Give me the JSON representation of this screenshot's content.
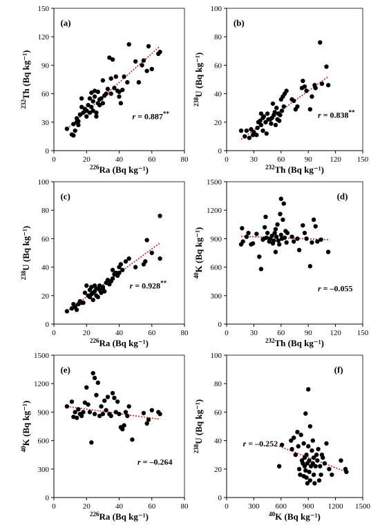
{
  "chart_data": [
    {
      "type": "scatter",
      "panel_label": "(a)",
      "x_var": "226Ra",
      "x_unit": "(Bq kg⁻¹)",
      "y_var": "232Th",
      "y_unit": "(Bq kg⁻¹)",
      "xlim": [
        0,
        80
      ],
      "xticks": [
        0,
        20,
        40,
        60,
        80
      ],
      "ylim": [
        0,
        150
      ],
      "yticks": [
        0,
        30,
        60,
        90,
        120,
        150
      ],
      "r_text": "r = 0.887**",
      "trendline": [
        [
          8,
          23
        ],
        [
          65,
          110
        ]
      ],
      "points": [
        [
          8,
          23
        ],
        [
          11,
          17
        ],
        [
          12,
          16
        ],
        [
          12,
          28
        ],
        [
          13,
          21
        ],
        [
          14,
          30
        ],
        [
          14,
          34
        ],
        [
          15,
          27
        ],
        [
          15,
          31
        ],
        [
          16,
          38
        ],
        [
          17,
          46
        ],
        [
          17,
          55
        ],
        [
          18,
          40
        ],
        [
          19,
          44
        ],
        [
          20,
          42
        ],
        [
          20,
          36
        ],
        [
          21,
          48
        ],
        [
          22,
          40
        ],
        [
          22,
          55
        ],
        [
          23,
          46
        ],
        [
          23,
          61
        ],
        [
          24,
          52
        ],
        [
          24,
          42
        ],
        [
          25,
          57
        ],
        [
          25,
          63
        ],
        [
          26,
          36
        ],
        [
          26,
          40
        ],
        [
          27,
          50
        ],
        [
          27,
          62
        ],
        [
          28,
          48
        ],
        [
          28,
          54
        ],
        [
          29,
          55
        ],
        [
          30,
          50
        ],
        [
          30,
          74
        ],
        [
          31,
          58
        ],
        [
          32,
          60
        ],
        [
          33,
          65
        ],
        [
          34,
          98
        ],
        [
          35,
          60
        ],
        [
          35,
          76
        ],
        [
          36,
          96
        ],
        [
          37,
          66
        ],
        [
          38,
          78
        ],
        [
          39,
          63
        ],
        [
          40,
          62
        ],
        [
          40,
          57
        ],
        [
          41,
          50
        ],
        [
          42,
          64
        ],
        [
          43,
          78
        ],
        [
          45,
          72
        ],
        [
          46,
          112
        ],
        [
          50,
          94
        ],
        [
          52,
          72
        ],
        [
          54,
          90
        ],
        [
          55,
          95
        ],
        [
          57,
          84
        ],
        [
          58,
          110
        ],
        [
          60,
          86
        ],
        [
          64,
          102
        ],
        [
          65,
          104
        ]
      ]
    },
    {
      "type": "scatter",
      "panel_label": "(b)",
      "x_var": "232Th",
      "x_unit": "(Bq kg⁻¹)",
      "y_var": "238U",
      "y_unit": "(Bq kg⁻¹)",
      "xlim": [
        0,
        150
      ],
      "xticks": [
        0,
        30,
        60,
        90,
        120,
        150
      ],
      "ylim": [
        0,
        100
      ],
      "yticks": [
        0,
        20,
        40,
        60,
        80,
        100
      ],
      "r_text": "r = 0.838**",
      "trendline": [
        [
          16,
          8
        ],
        [
          112,
          52
        ]
      ],
      "points": [
        [
          16,
          14
        ],
        [
          20,
          10
        ],
        [
          22,
          14
        ],
        [
          25,
          9
        ],
        [
          27,
          15
        ],
        [
          29,
          11
        ],
        [
          30,
          13
        ],
        [
          33,
          11
        ],
        [
          34,
          16
        ],
        [
          35,
          20
        ],
        [
          37,
          21
        ],
        [
          38,
          26
        ],
        [
          38,
          18
        ],
        [
          40,
          14
        ],
        [
          40,
          23
        ],
        [
          41,
          24
        ],
        [
          43,
          20
        ],
        [
          44,
          12
        ],
        [
          45,
          26
        ],
        [
          46,
          22
        ],
        [
          48,
          22
        ],
        [
          49,
          19
        ],
        [
          50,
          23
        ],
        [
          51,
          33
        ],
        [
          52,
          25
        ],
        [
          53,
          27
        ],
        [
          54,
          18
        ],
        [
          55,
          30
        ],
        [
          56,
          22
        ],
        [
          57,
          26
        ],
        [
          58,
          21
        ],
        [
          59,
          25
        ],
        [
          60,
          36
        ],
        [
          61,
          28
        ],
        [
          62,
          38
        ],
        [
          63,
          31
        ],
        [
          64,
          40
        ],
        [
          66,
          42
        ],
        [
          72,
          36
        ],
        [
          74,
          35
        ],
        [
          76,
          29
        ],
        [
          78,
          31
        ],
        [
          83,
          44
        ],
        [
          84,
          49
        ],
        [
          86,
          45
        ],
        [
          88,
          42
        ],
        [
          92,
          29
        ],
        [
          94,
          38
        ],
        [
          97,
          46
        ],
        [
          98,
          44
        ],
        [
          103,
          76
        ],
        [
          105,
          47
        ],
        [
          110,
          59
        ],
        [
          112,
          46
        ]
      ]
    },
    {
      "type": "scatter",
      "panel_label": "(c)",
      "x_var": "226Ra",
      "x_unit": "(Bq kg⁻¹)",
      "y_var": "238U",
      "y_unit": "(Bq kg⁻¹)",
      "xlim": [
        0,
        80
      ],
      "xticks": [
        0,
        20,
        40,
        60,
        80
      ],
      "ylim": [
        0,
        100
      ],
      "yticks": [
        0,
        20,
        40,
        60,
        80,
        100
      ],
      "r_text": "r = 0.928**",
      "trendline": [
        [
          8,
          9
        ],
        [
          65,
          57
        ]
      ],
      "points": [
        [
          8,
          9
        ],
        [
          11,
          11
        ],
        [
          12,
          14
        ],
        [
          13,
          12
        ],
        [
          14,
          10
        ],
        [
          15,
          14
        ],
        [
          16,
          16
        ],
        [
          17,
          15
        ],
        [
          18,
          15
        ],
        [
          19,
          22
        ],
        [
          20,
          27
        ],
        [
          21,
          20
        ],
        [
          22,
          24
        ],
        [
          22,
          19
        ],
        [
          23,
          26
        ],
        [
          23,
          21
        ],
        [
          24,
          22
        ],
        [
          24,
          17
        ],
        [
          25,
          23
        ],
        [
          25,
          27
        ],
        [
          26,
          25
        ],
        [
          26,
          20
        ],
        [
          27,
          19
        ],
        [
          28,
          24
        ],
        [
          28,
          27
        ],
        [
          29,
          22
        ],
        [
          30,
          25
        ],
        [
          30,
          26
        ],
        [
          31,
          23
        ],
        [
          32,
          29
        ],
        [
          33,
          31
        ],
        [
          34,
          28
        ],
        [
          35,
          30
        ],
        [
          36,
          32
        ],
        [
          36,
          38
        ],
        [
          37,
          35
        ],
        [
          38,
          36
        ],
        [
          39,
          34
        ],
        [
          40,
          36
        ],
        [
          40,
          40
        ],
        [
          41,
          42
        ],
        [
          42,
          38
        ],
        [
          44,
          44
        ],
        [
          46,
          46
        ],
        [
          50,
          40
        ],
        [
          55,
          42
        ],
        [
          56,
          44
        ],
        [
          57,
          59
        ],
        [
          60,
          50
        ],
        [
          65,
          46
        ],
        [
          65,
          76
        ]
      ]
    },
    {
      "type": "scatter",
      "panel_label": "(d)",
      "x_var": "232Th",
      "x_unit": "(Bq kg⁻¹)",
      "y_var": "40K",
      "y_unit": "(Bq kg⁻¹)",
      "xlim": [
        0,
        150
      ],
      "xticks": [
        0,
        30,
        60,
        90,
        120,
        150
      ],
      "ylim": [
        0,
        1500
      ],
      "yticks": [
        0,
        300,
        600,
        900,
        1200,
        1500
      ],
      "r_text": "r = –0.055",
      "trendline": [
        [
          16,
          925
        ],
        [
          112,
          890
        ]
      ],
      "points": [
        [
          16,
          840
        ],
        [
          17,
          1010
        ],
        [
          18,
          870
        ],
        [
          22,
          920
        ],
        [
          24,
          960
        ],
        [
          27,
          840
        ],
        [
          29,
          850
        ],
        [
          33,
          950
        ],
        [
          36,
          710
        ],
        [
          38,
          580
        ],
        [
          40,
          890
        ],
        [
          41,
          900
        ],
        [
          42,
          1020
        ],
        [
          43,
          1130
        ],
        [
          44,
          910
        ],
        [
          45,
          960
        ],
        [
          47,
          870
        ],
        [
          48,
          900
        ],
        [
          50,
          930
        ],
        [
          51,
          850
        ],
        [
          52,
          880
        ],
        [
          53,
          960
        ],
        [
          54,
          1000
        ],
        [
          54,
          760
        ],
        [
          55,
          920
        ],
        [
          56,
          1050
        ],
        [
          57,
          880
        ],
        [
          58,
          840
        ],
        [
          59,
          1160
        ],
        [
          60,
          1320
        ],
        [
          60,
          940
        ],
        [
          61,
          900
        ],
        [
          62,
          1100
        ],
        [
          63,
          1270
        ],
        [
          64,
          910
        ],
        [
          65,
          980
        ],
        [
          66,
          860
        ],
        [
          67,
          960
        ],
        [
          72,
          920
        ],
        [
          74,
          870
        ],
        [
          78,
          900
        ],
        [
          80,
          780
        ],
        [
          84,
          1040
        ],
        [
          86,
          960
        ],
        [
          88,
          900
        ],
        [
          92,
          610
        ],
        [
          94,
          860
        ],
        [
          96,
          1100
        ],
        [
          98,
          1030
        ],
        [
          100,
          870
        ],
        [
          104,
          890
        ],
        [
          112,
          760
        ]
      ]
    },
    {
      "type": "scatter",
      "panel_label": "(e)",
      "x_var": "226Ra",
      "x_unit": "(Bq kg⁻¹)",
      "y_var": "40K",
      "y_unit": "(Bq kg⁻¹)",
      "xlim": [
        0,
        80
      ],
      "xticks": [
        0,
        20,
        40,
        60,
        80
      ],
      "ylim": [
        0,
        1500
      ],
      "yticks": [
        0,
        300,
        600,
        900,
        1200,
        1500
      ],
      "r_text": "r = –0.264",
      "trendline": [
        [
          8,
          960
        ],
        [
          65,
          825
        ]
      ],
      "points": [
        [
          8,
          960
        ],
        [
          11,
          1010
        ],
        [
          12,
          850
        ],
        [
          13,
          900
        ],
        [
          14,
          840
        ],
        [
          15,
          930
        ],
        [
          16,
          880
        ],
        [
          17,
          860
        ],
        [
          18,
          900
        ],
        [
          19,
          1000
        ],
        [
          20,
          1160
        ],
        [
          21,
          980
        ],
        [
          22,
          900
        ],
        [
          23,
          580
        ],
        [
          24,
          1310
        ],
        [
          25,
          1260
        ],
        [
          25,
          880
        ],
        [
          26,
          1080
        ],
        [
          27,
          1210
        ],
        [
          28,
          860
        ],
        [
          29,
          960
        ],
        [
          30,
          880
        ],
        [
          31,
          1020
        ],
        [
          32,
          920
        ],
        [
          33,
          1060
        ],
        [
          34,
          880
        ],
        [
          35,
          860
        ],
        [
          36,
          1100
        ],
        [
          37,
          1050
        ],
        [
          38,
          900
        ],
        [
          39,
          1010
        ],
        [
          40,
          880
        ],
        [
          41,
          740
        ],
        [
          42,
          720
        ],
        [
          43,
          760
        ],
        [
          44,
          900
        ],
        [
          45,
          860
        ],
        [
          46,
          960
        ],
        [
          48,
          610
        ],
        [
          55,
          890
        ],
        [
          57,
          780
        ],
        [
          58,
          820
        ],
        [
          60,
          920
        ],
        [
          64,
          900
        ],
        [
          65,
          880
        ]
      ]
    },
    {
      "type": "scatter",
      "panel_label": "(f)",
      "x_var": "40K",
      "x_unit": "(Bq kg⁻¹)",
      "y_var": "238U",
      "y_unit": "(Bq kg⁻¹)",
      "xlim": [
        0,
        1500
      ],
      "xticks": [
        0,
        300,
        600,
        900,
        1200,
        1500
      ],
      "ylim": [
        0,
        100
      ],
      "yticks": [
        0,
        20,
        40,
        60,
        80,
        100
      ],
      "r_text": "r = –0.252",
      "trendline": [
        [
          580,
          36
        ],
        [
          1320,
          18
        ]
      ],
      "points": [
        [
          580,
          22
        ],
        [
          610,
          37
        ],
        [
          710,
          40
        ],
        [
          720,
          34
        ],
        [
          740,
          42
        ],
        [
          760,
          30
        ],
        [
          780,
          46
        ],
        [
          790,
          36
        ],
        [
          800,
          20
        ],
        [
          810,
          16
        ],
        [
          820,
          44
        ],
        [
          830,
          26
        ],
        [
          840,
          24
        ],
        [
          850,
          38
        ],
        [
          850,
          15
        ],
        [
          860,
          22
        ],
        [
          860,
          28
        ],
        [
          870,
          19
        ],
        [
          870,
          59
        ],
        [
          880,
          14
        ],
        [
          880,
          30
        ],
        [
          890,
          24
        ],
        [
          890,
          10
        ],
        [
          900,
          76
        ],
        [
          900,
          36
        ],
        [
          910,
          26
        ],
        [
          910,
          18
        ],
        [
          920,
          50
        ],
        [
          920,
          12
        ],
        [
          930,
          22
        ],
        [
          940,
          33
        ],
        [
          950,
          24
        ],
        [
          950,
          40
        ],
        [
          960,
          28
        ],
        [
          960,
          16
        ],
        [
          970,
          10
        ],
        [
          980,
          22
        ],
        [
          990,
          30
        ],
        [
          1000,
          26
        ],
        [
          1010,
          34
        ],
        [
          1020,
          12
        ],
        [
          1030,
          22
        ],
        [
          1040,
          16
        ],
        [
          1050,
          30
        ],
        [
          1060,
          28
        ],
        [
          1080,
          24
        ],
        [
          1100,
          38
        ],
        [
          1130,
          20
        ],
        [
          1160,
          16
        ],
        [
          1260,
          26
        ],
        [
          1310,
          20
        ],
        [
          1320,
          18
        ]
      ]
    }
  ]
}
